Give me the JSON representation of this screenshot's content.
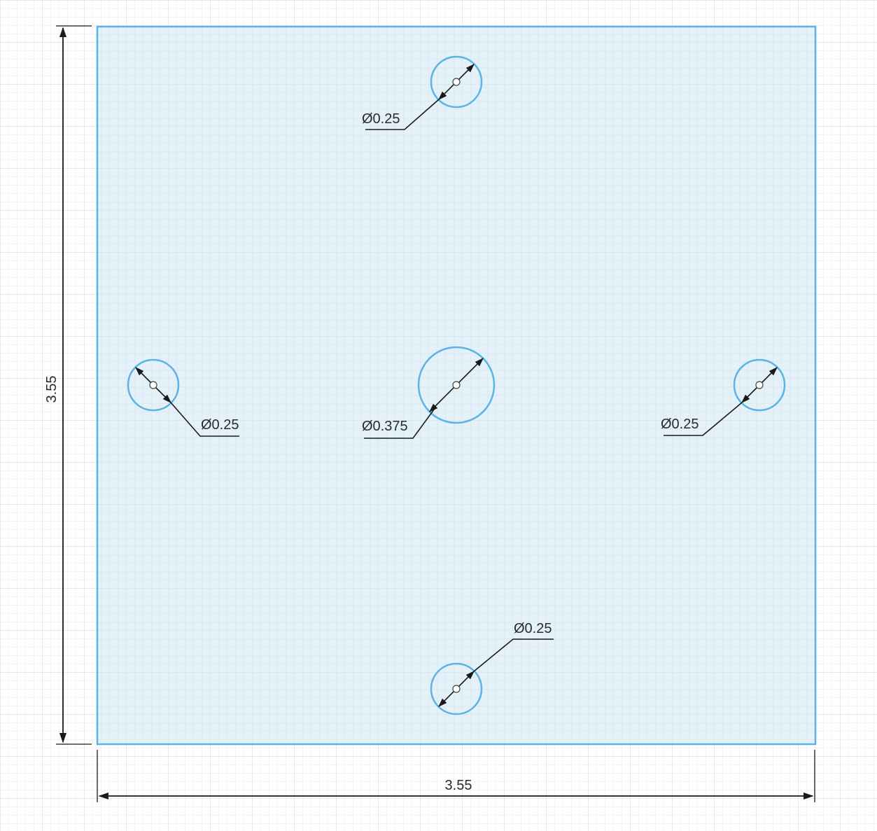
{
  "plate": {
    "width_label": "3.55",
    "height_label": "3.55"
  },
  "holes": [
    {
      "id": "top",
      "label": "Ø0.25"
    },
    {
      "id": "left",
      "label": "Ø0.25"
    },
    {
      "id": "center",
      "label": "Ø0.375"
    },
    {
      "id": "right",
      "label": "Ø0.25"
    },
    {
      "id": "bottom",
      "label": "Ø0.25"
    }
  ],
  "colors": {
    "plate_fill": "#e4f0f8",
    "plate_edge": "#5ab4e6",
    "grid_major": "#cfd3d6",
    "grid_minor": "#e9ebec",
    "dimension": "#1a1a1a"
  }
}
